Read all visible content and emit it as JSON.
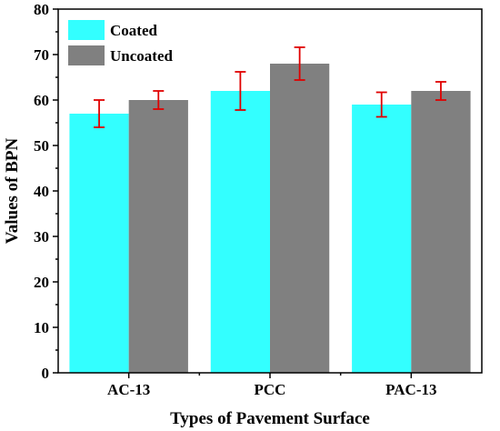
{
  "chart_data": {
    "type": "bar",
    "categories": [
      "AC-13",
      "PCC",
      "PAC-13"
    ],
    "series": [
      {
        "name": "Coated",
        "values": [
          57,
          62,
          59
        ],
        "error": [
          3,
          4.2,
          2.7
        ],
        "color": "#33ffff"
      },
      {
        "name": "Uncoated",
        "values": [
          60,
          68,
          62
        ],
        "error": [
          2,
          3.6,
          2
        ],
        "color": "#808080"
      }
    ],
    "error_bar_color": "#e00000",
    "xlabel": "Types of Pavement Surface",
    "ylabel": "Values of BPN",
    "ylim": [
      0,
      80
    ],
    "yticks": [
      "0",
      "10",
      "20",
      "30",
      "40",
      "50",
      "60",
      "70",
      "80"
    ],
    "grid": false,
    "legend_position": "top-left"
  }
}
